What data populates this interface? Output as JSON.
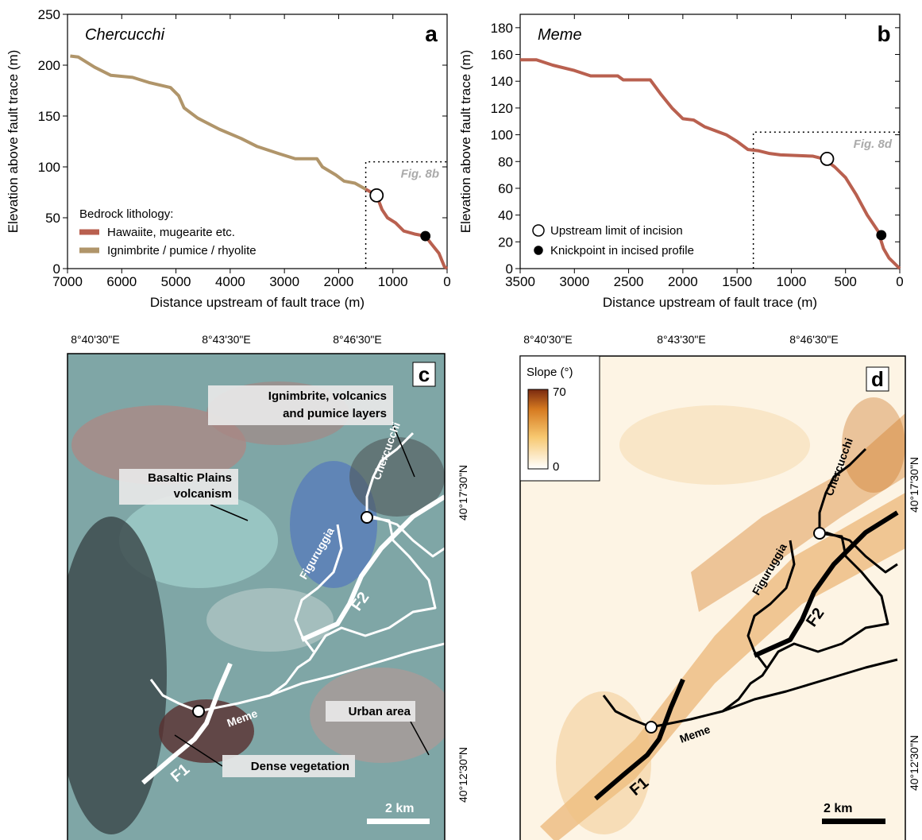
{
  "chart_data": [
    {
      "type": "line",
      "panel": "a",
      "title": "Chercucchi",
      "xlabel": "Distance upstream of fault trace (m)",
      "ylabel": "Elevation above fault trace (m)",
      "xlim": [
        7000,
        0
      ],
      "xticks": [
        7000,
        6000,
        5000,
        4000,
        3000,
        2000,
        1000,
        0
      ],
      "ylim": [
        0,
        250
      ],
      "yticks": [
        0,
        50,
        100,
        150,
        200,
        250
      ],
      "legend_title": "Bedrock lithology:",
      "legend": "lower left",
      "series": [
        {
          "name": "Hawaiite, mugearite etc.",
          "color": "#b9604f",
          "x": [
            1500,
            1300,
            1200,
            1100,
            950,
            800,
            600,
            400,
            300,
            150,
            50,
            0
          ],
          "values": [
            78,
            72,
            58,
            50,
            45,
            37,
            34,
            32,
            25,
            15,
            2,
            0
          ]
        },
        {
          "name": "Ignimbrite / pumice / rhyolite",
          "color": "#b0956a",
          "x": [
            6950,
            6800,
            6500,
            6200,
            5800,
            5500,
            5100,
            4950,
            4850,
            4600,
            4200,
            3800,
            3500,
            3100,
            2800,
            2400,
            2300,
            2050,
            1900,
            1700,
            1500
          ],
          "values": [
            209,
            208,
            198,
            190,
            188,
            183,
            178,
            170,
            158,
            148,
            137,
            128,
            120,
            113,
            108,
            108,
            100,
            92,
            86,
            84,
            78
          ]
        }
      ],
      "markers": [
        {
          "x": 1300,
          "y": 72,
          "fill": "white"
        },
        {
          "x": 400,
          "y": 32,
          "fill": "black"
        }
      ],
      "inset": {
        "label": "Fig. 8b",
        "xlim": [
          1500,
          0
        ],
        "ylim": [
          0,
          105
        ]
      }
    },
    {
      "type": "line",
      "panel": "b",
      "title": "Meme",
      "xlabel": "Distance upstream of fault trace (m)",
      "ylabel": "Elevation above fault trace (m)",
      "xlim": [
        3500,
        0
      ],
      "xticks": [
        3500,
        3000,
        2500,
        2000,
        1500,
        1000,
        500,
        0
      ],
      "ylim": [
        0,
        190
      ],
      "yticks": [
        0,
        20,
        40,
        60,
        80,
        100,
        120,
        140,
        160,
        180
      ],
      "legend": "lower left",
      "series": [
        {
          "color": "#b9604f",
          "x": [
            3500,
            3350,
            3200,
            3000,
            2850,
            2600,
            2550,
            2300,
            2200,
            2100,
            2000,
            1900,
            1800,
            1600,
            1500,
            1400,
            1300,
            1200,
            1100,
            800,
            700,
            600,
            500,
            400,
            300,
            200,
            150,
            100,
            0
          ],
          "values": [
            156,
            156,
            152,
            148,
            144,
            144,
            141,
            141,
            130,
            120,
            112,
            111,
            106,
            100,
            95,
            89,
            88,
            86,
            85,
            84,
            82,
            76,
            68,
            55,
            40,
            28,
            15,
            8,
            0
          ]
        }
      ],
      "markers": [
        {
          "name": "Upstream limit of incision",
          "x": 670,
          "y": 82,
          "fill": "white"
        },
        {
          "name": "Knickpoint in incised profile",
          "x": 170,
          "y": 25,
          "fill": "black"
        }
      ],
      "inset": {
        "label": "Fig. 8d",
        "xlim": [
          1350,
          0
        ],
        "ylim": [
          0,
          102
        ]
      }
    }
  ],
  "maps": {
    "c": {
      "label": "c",
      "lon_labels": [
        "8°40'30\"E",
        "8°43'30\"E",
        "8°46'30\"E"
      ],
      "lat_labels": [
        "40°17'30\"N",
        "40°12'30\"N"
      ],
      "annotations": [
        {
          "lines": [
            "Ignimbrite, volcanics",
            "and pumice layers"
          ]
        },
        {
          "lines": [
            "Basaltic Plains",
            "volcanism"
          ]
        },
        {
          "lines": [
            "Urban area"
          ]
        },
        {
          "lines": [
            "Dense vegetation"
          ]
        }
      ],
      "rivers": [
        "Chercucchi",
        "Figuruggia",
        "Meme"
      ],
      "faults": [
        "F1",
        "F2"
      ],
      "scale": "2 km"
    },
    "d": {
      "label": "d",
      "lon_labels": [
        "8°40'30\"E",
        "8°43'30\"E",
        "8°46'30\"E"
      ],
      "lat_labels": [
        "40°17'30\"N",
        "40°12'30\"N"
      ],
      "legend_title": "Slope (°)",
      "legend_max": "70",
      "legend_min": "0",
      "rivers": [
        "Chercucchi",
        "Figuruggia",
        "Meme"
      ],
      "faults": [
        "F1",
        "F2"
      ],
      "scale": "2 km"
    }
  }
}
